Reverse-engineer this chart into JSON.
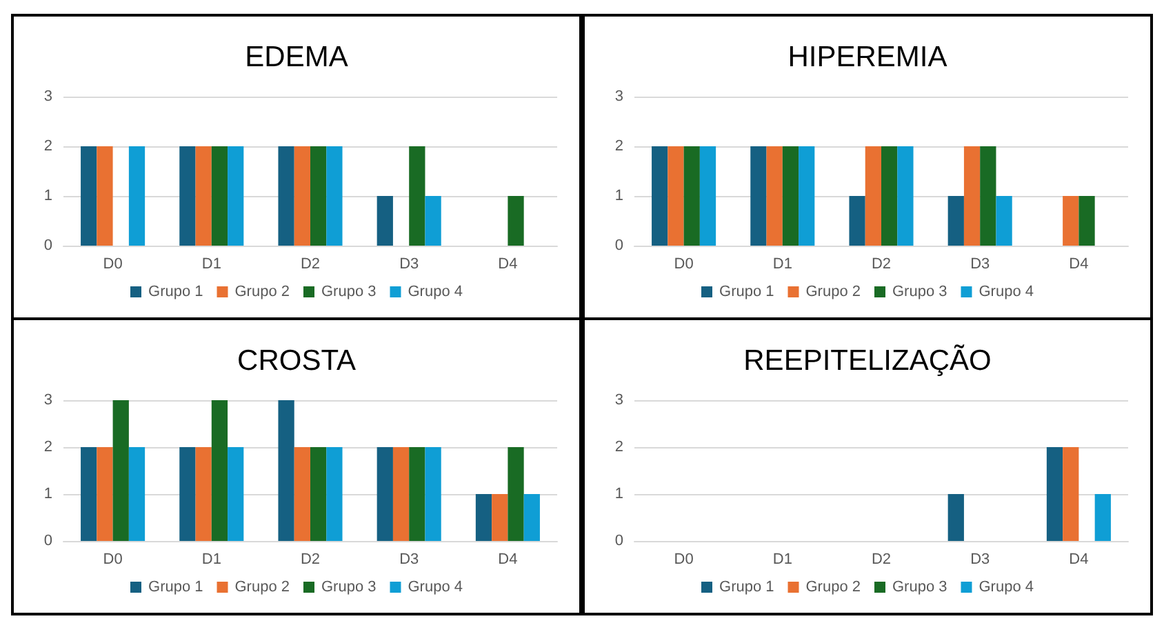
{
  "chart_data": [
    {
      "type": "bar",
      "title": "EDEMA",
      "categories": [
        "D0",
        "D1",
        "D2",
        "D3",
        "D4"
      ],
      "ylim": [
        0,
        3
      ],
      "yticks": [
        0,
        1,
        2,
        3
      ],
      "grid": "y",
      "legend": "bottom",
      "series": [
        {
          "name": "Grupo 1",
          "color": "#156082",
          "values": [
            2,
            2,
            2,
            1,
            0
          ]
        },
        {
          "name": "Grupo 2",
          "color": "#e97132",
          "values": [
            2,
            2,
            2,
            0,
            0
          ]
        },
        {
          "name": "Grupo 3",
          "color": "#196b24",
          "values": [
            0,
            2,
            2,
            2,
            1
          ]
        },
        {
          "name": "Grupo 4",
          "color": "#0f9ed5",
          "values": [
            2,
            2,
            2,
            1,
            0
          ]
        }
      ]
    },
    {
      "type": "bar",
      "title": "HIPEREMIA",
      "categories": [
        "D0",
        "D1",
        "D2",
        "D3",
        "D4"
      ],
      "ylim": [
        0,
        3
      ],
      "yticks": [
        0,
        1,
        2,
        3
      ],
      "grid": "y",
      "legend": "bottom",
      "series": [
        {
          "name": "Grupo 1",
          "color": "#156082",
          "values": [
            2,
            2,
            1,
            1,
            0
          ]
        },
        {
          "name": "Grupo 2",
          "color": "#e97132",
          "values": [
            2,
            2,
            2,
            2,
            1
          ]
        },
        {
          "name": "Grupo 3",
          "color": "#196b24",
          "values": [
            2,
            2,
            2,
            2,
            1
          ]
        },
        {
          "name": "Grupo 4",
          "color": "#0f9ed5",
          "values": [
            2,
            2,
            2,
            1,
            0
          ]
        }
      ]
    },
    {
      "type": "bar",
      "title": "CROSTA",
      "categories": [
        "D0",
        "D1",
        "D2",
        "D3",
        "D4"
      ],
      "ylim": [
        0,
        3
      ],
      "yticks": [
        0,
        1,
        2,
        3
      ],
      "grid": "y",
      "legend": "bottom",
      "series": [
        {
          "name": "Grupo 1",
          "color": "#156082",
          "values": [
            2,
            2,
            3,
            2,
            1
          ]
        },
        {
          "name": "Grupo 2",
          "color": "#e97132",
          "values": [
            2,
            2,
            2,
            2,
            1
          ]
        },
        {
          "name": "Grupo 3",
          "color": "#196b24",
          "values": [
            3,
            3,
            2,
            2,
            2
          ]
        },
        {
          "name": "Grupo 4",
          "color": "#0f9ed5",
          "values": [
            2,
            2,
            2,
            2,
            1
          ]
        }
      ]
    },
    {
      "type": "bar",
      "title": "REEPITELIZAÇÃO",
      "categories": [
        "D0",
        "D1",
        "D2",
        "D3",
        "D4"
      ],
      "ylim": [
        0,
        3
      ],
      "yticks": [
        0,
        1,
        2,
        3
      ],
      "grid": "y",
      "legend": "bottom",
      "series": [
        {
          "name": "Grupo 1",
          "color": "#156082",
          "values": [
            0,
            0,
            0,
            1,
            2
          ]
        },
        {
          "name": "Grupo 2",
          "color": "#e97132",
          "values": [
            0,
            0,
            0,
            0,
            2
          ]
        },
        {
          "name": "Grupo 3",
          "color": "#196b24",
          "values": [
            0,
            0,
            0,
            0,
            0
          ]
        },
        {
          "name": "Grupo 4",
          "color": "#0f9ed5",
          "values": [
            0,
            0,
            0,
            0,
            1
          ]
        }
      ]
    }
  ]
}
